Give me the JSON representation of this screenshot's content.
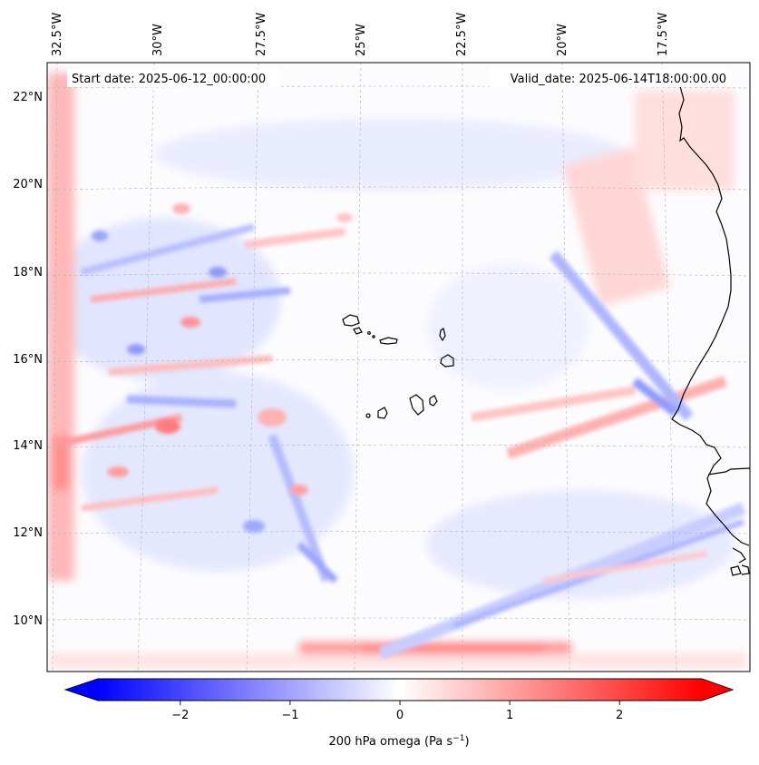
{
  "map": {
    "start_label": "Start date: 2025-06-12_00:00:00",
    "valid_label": "Valid_date: 2025-06-14T18:00:00.00",
    "lon_labels": [
      "32.5°W",
      "30°W",
      "27.5°W",
      "25°W",
      "22.5°W",
      "20°W",
      "17.5°W"
    ],
    "lat_labels": [
      "22°N",
      "20°N",
      "18°N",
      "16°N",
      "14°N",
      "12°N",
      "10°N"
    ]
  },
  "colorbar": {
    "ticks": [
      "−2",
      "−1",
      "0",
      "1",
      "2"
    ],
    "tick_values": [
      -2,
      -1,
      0,
      1,
      2
    ],
    "range": [
      -2.75,
      2.75
    ],
    "label_main": "200 hPa omega (Pa s",
    "label_exp": "−1",
    "label_close": ")",
    "colors": {
      "negative": "#0000ff",
      "zero": "#ffffff",
      "positive": "#ff0000"
    }
  }
}
